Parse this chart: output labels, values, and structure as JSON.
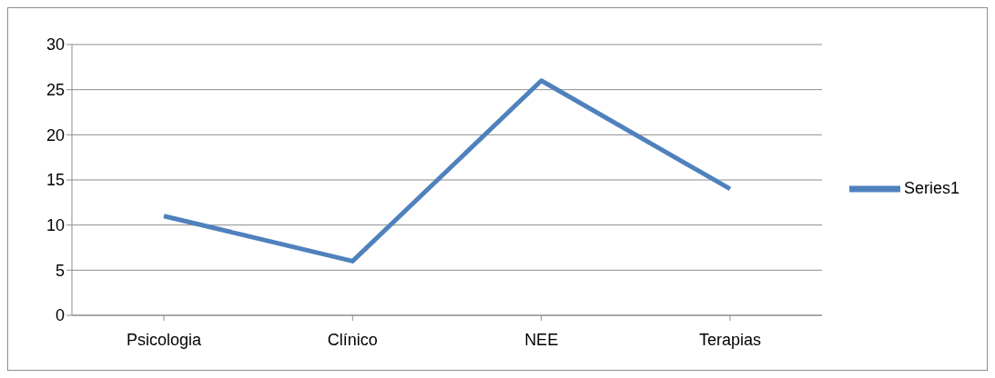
{
  "chart_data": {
    "type": "line",
    "categories": [
      "Psicologia",
      "Clínico",
      "NEE",
      "Terapias"
    ],
    "series": [
      {
        "name": "Series1",
        "color": "#4f81bd",
        "values": [
          11,
          6,
          26,
          14
        ]
      }
    ],
    "ylim": [
      0,
      30
    ],
    "yticks": [
      0,
      5,
      10,
      15,
      20,
      25,
      30
    ],
    "grid": "y",
    "legend": "right",
    "marker": "none",
    "line_style": "solid"
  }
}
